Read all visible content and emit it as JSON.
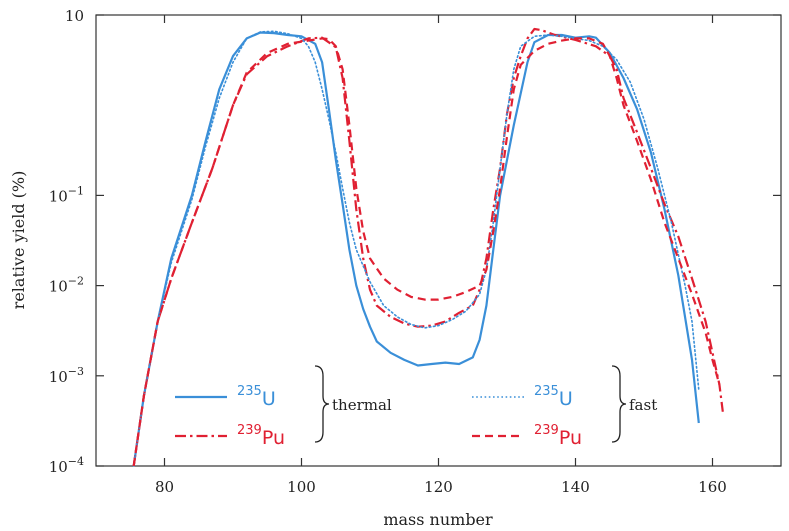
{
  "chart_data": {
    "type": "line",
    "title": "",
    "xlabel": "mass number",
    "ylabel": "relative yield (%)",
    "xlim": [
      70,
      170
    ],
    "ylim": [
      0.0001,
      10
    ],
    "yscale": "log",
    "grid": false,
    "x_ticks": [
      80,
      100,
      120,
      140,
      160
    ],
    "x_tick_labels": [
      "80",
      "100",
      "120",
      "140",
      "160"
    ],
    "y_ticks": [
      0.0001,
      0.001,
      0.01,
      0.1,
      10
    ],
    "y_tick_labels": [
      {
        "base": "10",
        "exp": "−4"
      },
      {
        "base": "10",
        "exp": "−3"
      },
      {
        "base": "10",
        "exp": "−2"
      },
      {
        "base": "10",
        "exp": "−1"
      },
      {
        "base": "10",
        "exp": ""
      }
    ],
    "legend": {
      "placement": "bottom-center",
      "groups": [
        {
          "label": "thermal",
          "entries": [
            {
              "mass": "235",
              "symbol": "U",
              "color": "#3a8fd8",
              "dash": "solid"
            },
            {
              "mass": "239",
              "symbol": "Pu",
              "color": "#e02032",
              "dash": "dashdot"
            }
          ]
        },
        {
          "label": "fast",
          "entries": [
            {
              "mass": "235",
              "symbol": "U",
              "color": "#3a8fd8",
              "dash": "dotted"
            },
            {
              "mass": "239",
              "symbol": "Pu",
              "color": "#e02032",
              "dash": "dashed"
            }
          ]
        }
      ]
    },
    "series": [
      {
        "isotope": "235U",
        "group": "thermal",
        "color": "#3a8fd8",
        "dash": "solid",
        "points": [
          [
            75.5,
            0.0001
          ],
          [
            77,
            0.0006
          ],
          [
            79,
            0.004
          ],
          [
            81,
            0.02
          ],
          [
            84,
            0.1
          ],
          [
            86,
            0.4
          ],
          [
            88,
            1.5
          ],
          [
            90,
            3.5
          ],
          [
            92,
            5.5
          ],
          [
            94,
            6.4
          ],
          [
            96,
            6.3
          ],
          [
            98,
            6.0
          ],
          [
            100,
            5.8
          ],
          [
            102,
            4.8
          ],
          [
            103,
            3.0
          ],
          [
            104,
            0.9
          ],
          [
            105,
            0.25
          ],
          [
            106,
            0.08
          ],
          [
            107,
            0.025
          ],
          [
            108,
            0.01
          ],
          [
            109,
            0.0055
          ],
          [
            110,
            0.0035
          ],
          [
            111,
            0.0024
          ],
          [
            113,
            0.0018
          ],
          [
            115,
            0.0015
          ],
          [
            117,
            0.0013
          ],
          [
            119,
            0.00135
          ],
          [
            121,
            0.0014
          ],
          [
            123,
            0.00135
          ],
          [
            125,
            0.0016
          ],
          [
            126,
            0.0025
          ],
          [
            127,
            0.006
          ],
          [
            128,
            0.025
          ],
          [
            129,
            0.1
          ],
          [
            131,
            0.6
          ],
          [
            133,
            3.0
          ],
          [
            134,
            5.0
          ],
          [
            136,
            6.0
          ],
          [
            138,
            6.0
          ],
          [
            140,
            5.6
          ],
          [
            142,
            5.8
          ],
          [
            143,
            5.6
          ],
          [
            145,
            3.8
          ],
          [
            147,
            2.0
          ],
          [
            149,
            0.9
          ],
          [
            151,
            0.3
          ],
          [
            153,
            0.07
          ],
          [
            155,
            0.013
          ],
          [
            157,
            0.0015
          ],
          [
            158,
            0.0003
          ]
        ]
      },
      {
        "isotope": "239Pu",
        "group": "thermal",
        "color": "#e02032",
        "dash": "dashdot",
        "points": [
          [
            75.5,
            0.0001
          ],
          [
            77,
            0.0006
          ],
          [
            79,
            0.004
          ],
          [
            81,
            0.012
          ],
          [
            84,
            0.05
          ],
          [
            87,
            0.2
          ],
          [
            90,
            1.0
          ],
          [
            92,
            2.2
          ],
          [
            95,
            3.5
          ],
          [
            98,
            4.5
          ],
          [
            101,
            5.5
          ],
          [
            103,
            5.6
          ],
          [
            105,
            4.4
          ],
          [
            106,
            2.0
          ],
          [
            107,
            0.4
          ],
          [
            108,
            0.07
          ],
          [
            109,
            0.02
          ],
          [
            110,
            0.009
          ],
          [
            111,
            0.006
          ],
          [
            113,
            0.0045
          ],
          [
            115,
            0.0038
          ],
          [
            117,
            0.0035
          ],
          [
            119,
            0.0036
          ],
          [
            121,
            0.004
          ],
          [
            123,
            0.005
          ],
          [
            125,
            0.006
          ],
          [
            126,
            0.009
          ],
          [
            127,
            0.02
          ],
          [
            128,
            0.07
          ],
          [
            129,
            0.2
          ],
          [
            130,
            0.8
          ],
          [
            131,
            2.0
          ],
          [
            132,
            3.5
          ],
          [
            133,
            5.5
          ],
          [
            134,
            7.0
          ],
          [
            135,
            6.8
          ],
          [
            137,
            6.0
          ],
          [
            140,
            5.3
          ],
          [
            143,
            4.5
          ],
          [
            145,
            3.5
          ],
          [
            146,
            2.5
          ],
          [
            147,
            1.2
          ],
          [
            149,
            0.5
          ],
          [
            151,
            0.2
          ],
          [
            153,
            0.08
          ],
          [
            155,
            0.035
          ],
          [
            157,
            0.012
          ],
          [
            159,
            0.004
          ],
          [
            160,
            0.0018
          ],
          [
            161,
            0.0008
          ],
          [
            161.5,
            0.0004
          ]
        ]
      },
      {
        "isotope": "235U",
        "group": "fast",
        "color": "#3a8fd8",
        "dash": "dotted",
        "points": [
          [
            75.5,
            0.0001
          ],
          [
            77,
            0.0006
          ],
          [
            79,
            0.004
          ],
          [
            81,
            0.018
          ],
          [
            84,
            0.09
          ],
          [
            86,
            0.35
          ],
          [
            88,
            1.2
          ],
          [
            90,
            3.0
          ],
          [
            92,
            5.5
          ],
          [
            94,
            6.5
          ],
          [
            96,
            6.6
          ],
          [
            98,
            6.2
          ],
          [
            100,
            5.5
          ],
          [
            101,
            4.5
          ],
          [
            102,
            3.0
          ],
          [
            103,
            1.5
          ],
          [
            104,
            0.7
          ],
          [
            105,
            0.3
          ],
          [
            106,
            0.12
          ],
          [
            107,
            0.05
          ],
          [
            108,
            0.025
          ],
          [
            110,
            0.011
          ],
          [
            112,
            0.006
          ],
          [
            114,
            0.0045
          ],
          [
            116,
            0.0037
          ],
          [
            118,
            0.0034
          ],
          [
            120,
            0.0036
          ],
          [
            122,
            0.0042
          ],
          [
            124,
            0.0052
          ],
          [
            126,
            0.008
          ],
          [
            127,
            0.015
          ],
          [
            128,
            0.05
          ],
          [
            129,
            0.2
          ],
          [
            130,
            0.8
          ],
          [
            131,
            2.5
          ],
          [
            132,
            4.5
          ],
          [
            134,
            5.8
          ],
          [
            136,
            6.0
          ],
          [
            138,
            5.8
          ],
          [
            140,
            5.5
          ],
          [
            142,
            5.2
          ],
          [
            144,
            4.5
          ],
          [
            146,
            3.2
          ],
          [
            148,
            1.8
          ],
          [
            150,
            0.7
          ],
          [
            152,
            0.2
          ],
          [
            154,
            0.05
          ],
          [
            156,
            0.01
          ],
          [
            157,
            0.004
          ],
          [
            158,
            0.0007
          ]
        ]
      },
      {
        "isotope": "239Pu",
        "group": "fast",
        "color": "#e02032",
        "dash": "dashed",
        "points": [
          [
            75.5,
            0.0001
          ],
          [
            77,
            0.0006
          ],
          [
            79,
            0.004
          ],
          [
            81,
            0.012
          ],
          [
            84,
            0.05
          ],
          [
            87,
            0.2
          ],
          [
            90,
            1.0
          ],
          [
            92,
            2.3
          ],
          [
            95,
            3.8
          ],
          [
            98,
            4.8
          ],
          [
            101,
            5.2
          ],
          [
            103,
            5.5
          ],
          [
            104,
            5.4
          ],
          [
            105,
            4.5
          ],
          [
            106,
            2.5
          ],
          [
            107,
            0.6
          ],
          [
            108,
            0.12
          ],
          [
            109,
            0.04
          ],
          [
            110,
            0.02
          ],
          [
            112,
            0.012
          ],
          [
            114,
            0.009
          ],
          [
            116,
            0.0075
          ],
          [
            118,
            0.007
          ],
          [
            120,
            0.007
          ],
          [
            122,
            0.0075
          ],
          [
            124,
            0.0085
          ],
          [
            126,
            0.01
          ],
          [
            127,
            0.015
          ],
          [
            128,
            0.04
          ],
          [
            129,
            0.12
          ],
          [
            130,
            0.45
          ],
          [
            131,
            1.5
          ],
          [
            132,
            2.8
          ],
          [
            134,
            4.0
          ],
          [
            136,
            4.8
          ],
          [
            138,
            5.2
          ],
          [
            140,
            5.5
          ],
          [
            142,
            5.5
          ],
          [
            144,
            4.8
          ],
          [
            145,
            3.5
          ],
          [
            146,
            2.0
          ],
          [
            147,
            1.0
          ],
          [
            149,
            0.4
          ],
          [
            151,
            0.15
          ],
          [
            153,
            0.05
          ],
          [
            155,
            0.02
          ],
          [
            157,
            0.008
          ],
          [
            159,
            0.003
          ],
          [
            160,
            0.0015
          ],
          [
            161,
            0.0008
          ]
        ]
      }
    ]
  }
}
